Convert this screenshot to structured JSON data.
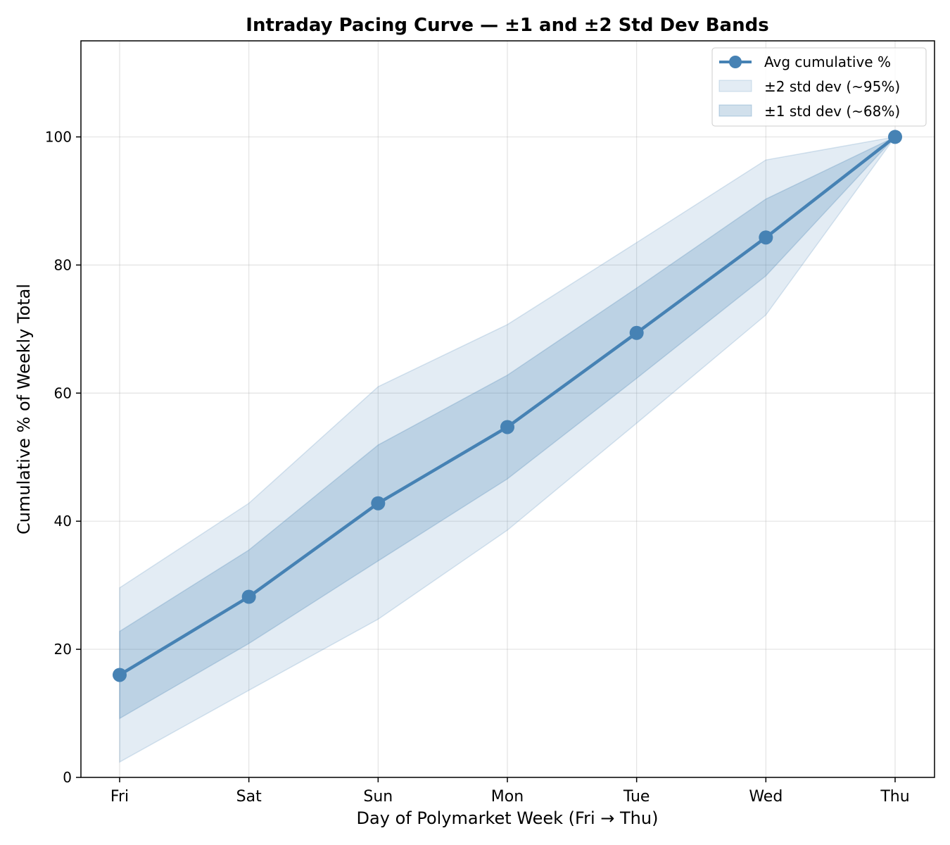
{
  "chart_data": {
    "type": "line",
    "title": "Intraday Pacing Curve — ±1 and ±2 Std Dev Bands",
    "xlabel": "Day of Polymarket Week (Fri → Thu)",
    "ylabel": "Cumulative % of Weekly Total",
    "categories": [
      "Fri",
      "Sat",
      "Sun",
      "Mon",
      "Tue",
      "Wed",
      "Thu"
    ],
    "ylim": [
      0,
      115
    ],
    "yticks": [
      "0",
      "20",
      "40",
      "60",
      "80",
      "100"
    ],
    "grid": true,
    "legend_position": "top-right",
    "series": [
      {
        "name": "Avg cumulative %",
        "kind": "line",
        "values": [
          16.0,
          28.2,
          42.8,
          54.7,
          69.4,
          84.3,
          100.0
        ]
      },
      {
        "name": "±2 std dev (~95%)",
        "kind": "band",
        "lower": [
          2.4,
          13.6,
          24.7,
          38.6,
          55.3,
          72.2,
          100.0
        ],
        "upper": [
          29.6,
          42.8,
          61.0,
          70.7,
          83.5,
          96.4,
          100.0
        ]
      },
      {
        "name": "±1 std dev (~68%)",
        "kind": "band",
        "lower": [
          9.2,
          20.9,
          33.8,
          46.6,
          62.3,
          78.3,
          100.0
        ],
        "upper": [
          22.8,
          35.5,
          51.9,
          62.8,
          76.4,
          90.3,
          100.0
        ]
      }
    ],
    "colors": {
      "line": "#4682b4",
      "band2": "#4682b4",
      "band1": "#4682b4"
    }
  }
}
